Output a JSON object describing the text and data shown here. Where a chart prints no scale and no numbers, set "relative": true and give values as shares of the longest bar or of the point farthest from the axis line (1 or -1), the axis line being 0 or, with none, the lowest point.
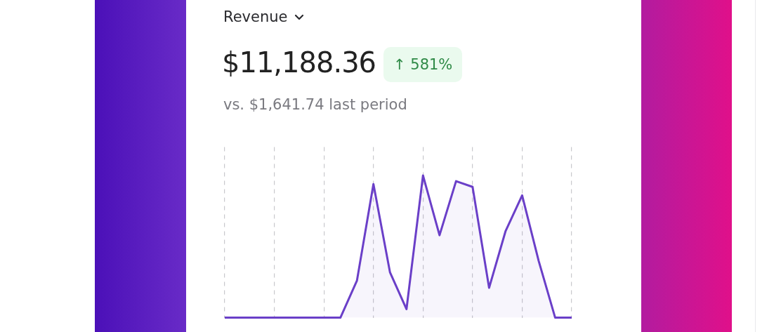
{
  "chart_data": {
    "type": "area",
    "title": "Revenue",
    "annotations": [
      "$11,188.36",
      "↑ 581%",
      "vs. $1,641.74 last period"
    ],
    "categories": [
      null,
      null,
      null,
      null,
      null,
      null,
      null,
      null,
      null,
      null,
      null,
      null,
      null,
      null,
      null,
      null,
      null,
      null,
      null,
      null,
      null,
      null
    ],
    "relative": true,
    "grid": "x",
    "legend": false,
    "marker": "none",
    "line_style": "solid",
    "series": [
      {
        "color": "#6a3fc8",
        "values": [
          0,
          0,
          0,
          0,
          0,
          0,
          0,
          0,
          0.26,
          0.94,
          0.32,
          0.06,
          1,
          0.58,
          0.96,
          0.92,
          0.21,
          0.61,
          0.86,
          0.4,
          0,
          0
        ]
      }
    ]
  }
}
